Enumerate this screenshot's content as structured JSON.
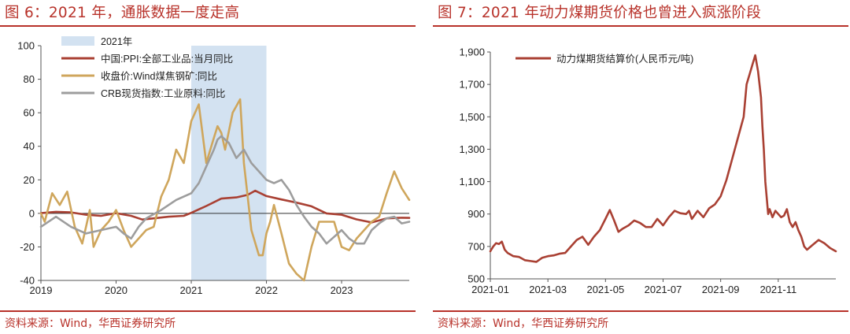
{
  "figure6": {
    "title": "图 6：2021 年，通胀数据一度走高",
    "source": "资料来源：Wind，华西证券研究所"
  },
  "figure7": {
    "title": "图 7：2021 年动力煤期货价格也曾进入疯涨阶段",
    "source": "资料来源：Wind，华西证券研究所"
  },
  "chart_data": [
    {
      "type": "line",
      "title": "图 6：2021 年，通胀数据一度走高",
      "xlabel": "",
      "ylabel": "",
      "xlim": [
        2019.0,
        2023.9
      ],
      "ylim": [
        -40,
        100
      ],
      "x_ticks": [
        "2019",
        "2020",
        "2021",
        "2022",
        "2023"
      ],
      "y_ticks": [
        "100",
        "80",
        "60",
        "40",
        "20",
        "0",
        "-20",
        "-40"
      ],
      "shaded_region": {
        "label": "2021年",
        "x": [
          2021.0,
          2022.0
        ],
        "color": "#d3e2f1"
      },
      "legend_position": "top-left",
      "series": [
        {
          "name": "中国:PPI:全部工业品:当月同比",
          "color": "#a94033",
          "x": [
            2019.0,
            2019.2,
            2019.4,
            2019.6,
            2019.8,
            2020.0,
            2020.2,
            2020.35,
            2020.5,
            2020.7,
            2020.9,
            2021.0,
            2021.2,
            2021.4,
            2021.6,
            2021.75,
            2021.85,
            2022.0,
            2022.2,
            2022.4,
            2022.6,
            2022.8,
            2023.0,
            2023.2,
            2023.4,
            2023.6,
            2023.8,
            2023.9
          ],
          "values": [
            0.1,
            0.9,
            0.6,
            -0.8,
            -1.5,
            0.1,
            -1.5,
            -3.7,
            -3.0,
            -2.0,
            -1.5,
            0.3,
            4.4,
            8.8,
            9.5,
            11.0,
            13.5,
            10.3,
            8.3,
            6.4,
            4.2,
            0.0,
            -0.8,
            -3.6,
            -5.4,
            -3.0,
            -2.6,
            -2.7
          ]
        },
        {
          "name": "收盘价:Wind煤焦钢矿:同比",
          "color": "#cfa65c",
          "x": [
            2019.0,
            2019.05,
            2019.15,
            2019.25,
            2019.35,
            2019.45,
            2019.55,
            2019.65,
            2019.7,
            2019.8,
            2019.9,
            2020.0,
            2020.1,
            2020.2,
            2020.3,
            2020.4,
            2020.5,
            2020.6,
            2020.7,
            2020.8,
            2020.9,
            2021.0,
            2021.1,
            2021.2,
            2021.3,
            2021.35,
            2021.4,
            2021.45,
            2021.55,
            2021.65,
            2021.7,
            2021.75,
            2021.8,
            2021.9,
            2021.95,
            2022.0,
            2022.05,
            2022.1,
            2022.2,
            2022.3,
            2022.4,
            2022.5,
            2022.6,
            2022.7,
            2022.8,
            2022.9,
            2023.0,
            2023.1,
            2023.2,
            2023.3,
            2023.4,
            2023.5,
            2023.6,
            2023.7,
            2023.8,
            2023.9
          ],
          "values": [
            0,
            -5,
            12,
            5,
            13,
            -8,
            -18,
            2,
            -20,
            -10,
            -5,
            2,
            -10,
            -20,
            -15,
            -10,
            -8,
            10,
            20,
            38,
            30,
            55,
            65,
            30,
            45,
            52,
            48,
            38,
            60,
            68,
            30,
            10,
            -10,
            -25,
            -25,
            -12,
            -5,
            5,
            -12,
            -30,
            -36,
            -40,
            -20,
            -5,
            -5,
            -5,
            -20,
            -22,
            -15,
            -10,
            -5,
            -2,
            12,
            25,
            15,
            8
          ]
        },
        {
          "name": "CRB现货指数:工业原料:同比",
          "color": "#9d9d9d",
          "x": [
            2019.0,
            2019.2,
            2019.4,
            2019.6,
            2019.8,
            2020.0,
            2020.1,
            2020.2,
            2020.3,
            2020.4,
            2020.6,
            2020.8,
            2021.0,
            2021.1,
            2021.2,
            2021.3,
            2021.35,
            2021.4,
            2021.5,
            2021.6,
            2021.7,
            2021.8,
            2021.9,
            2022.0,
            2022.1,
            2022.2,
            2022.3,
            2022.4,
            2022.5,
            2022.6,
            2022.7,
            2022.8,
            2022.9,
            2023.0,
            2023.1,
            2023.2,
            2023.3,
            2023.4,
            2023.5,
            2023.6,
            2023.7,
            2023.8,
            2023.9
          ],
          "values": [
            -8,
            -2,
            -8,
            -12,
            -10,
            -8,
            -12,
            -15,
            -8,
            -3,
            2,
            8,
            12,
            18,
            28,
            38,
            44,
            46,
            42,
            33,
            38,
            30,
            25,
            20,
            18,
            20,
            14,
            5,
            -2,
            -8,
            -12,
            -18,
            -14,
            -10,
            -15,
            -18,
            -18,
            -10,
            -6,
            -3,
            -2,
            -6,
            -5
          ]
        }
      ]
    },
    {
      "type": "line",
      "title": "图 7：2021 年动力煤期货价格也曾进入疯涨阶段",
      "xlabel": "",
      "ylabel": "",
      "xlim": [
        0,
        12
      ],
      "ylim": [
        500,
        1900
      ],
      "x_ticks": [
        "2021-01",
        "2021-03",
        "2021-05",
        "2021-07",
        "2021-09",
        "2021-11"
      ],
      "x_tick_positions": [
        0,
        2,
        4,
        6,
        8,
        10
      ],
      "y_ticks": [
        "1,900",
        "1,700",
        "1,500",
        "1,300",
        "1,100",
        "900",
        "700",
        "500"
      ],
      "legend_position": "top-left",
      "series": [
        {
          "name": "动力煤期货结算价(人民币元/吨)",
          "color": "#a94033",
          "x": [
            0,
            0.1,
            0.2,
            0.3,
            0.4,
            0.5,
            0.6,
            0.8,
            1.0,
            1.2,
            1.4,
            1.6,
            1.8,
            2.0,
            2.2,
            2.4,
            2.6,
            2.8,
            3.0,
            3.2,
            3.4,
            3.6,
            3.8,
            4.0,
            4.15,
            4.3,
            4.45,
            4.6,
            4.8,
            5.0,
            5.2,
            5.4,
            5.6,
            5.8,
            6.0,
            6.2,
            6.4,
            6.6,
            6.8,
            6.9,
            7.0,
            7.2,
            7.4,
            7.6,
            7.8,
            8.0,
            8.2,
            8.4,
            8.6,
            8.8,
            8.9,
            9.0,
            9.1,
            9.2,
            9.3,
            9.4,
            9.45,
            9.5,
            9.55,
            9.6,
            9.65,
            9.7,
            9.8,
            9.9,
            10.0,
            10.1,
            10.2,
            10.3,
            10.4,
            10.5,
            10.6,
            10.7,
            10.8,
            10.9,
            11.0,
            11.2,
            11.4,
            11.6,
            11.8,
            12.0
          ],
          "values": [
            670,
            700,
            720,
            715,
            730,
            680,
            660,
            640,
            635,
            615,
            610,
            605,
            630,
            640,
            645,
            655,
            660,
            700,
            740,
            760,
            710,
            760,
            800,
            870,
            925,
            860,
            790,
            810,
            830,
            860,
            845,
            820,
            820,
            870,
            830,
            880,
            920,
            905,
            900,
            920,
            870,
            920,
            880,
            935,
            960,
            1010,
            1110,
            1240,
            1370,
            1500,
            1700,
            1760,
            1820,
            1880,
            1780,
            1620,
            1440,
            1300,
            1100,
            1000,
            900,
            930,
            880,
            920,
            900,
            880,
            890,
            930,
            850,
            820,
            850,
            800,
            760,
            700,
            680,
            710,
            740,
            720,
            690,
            670
          ]
        }
      ]
    }
  ]
}
